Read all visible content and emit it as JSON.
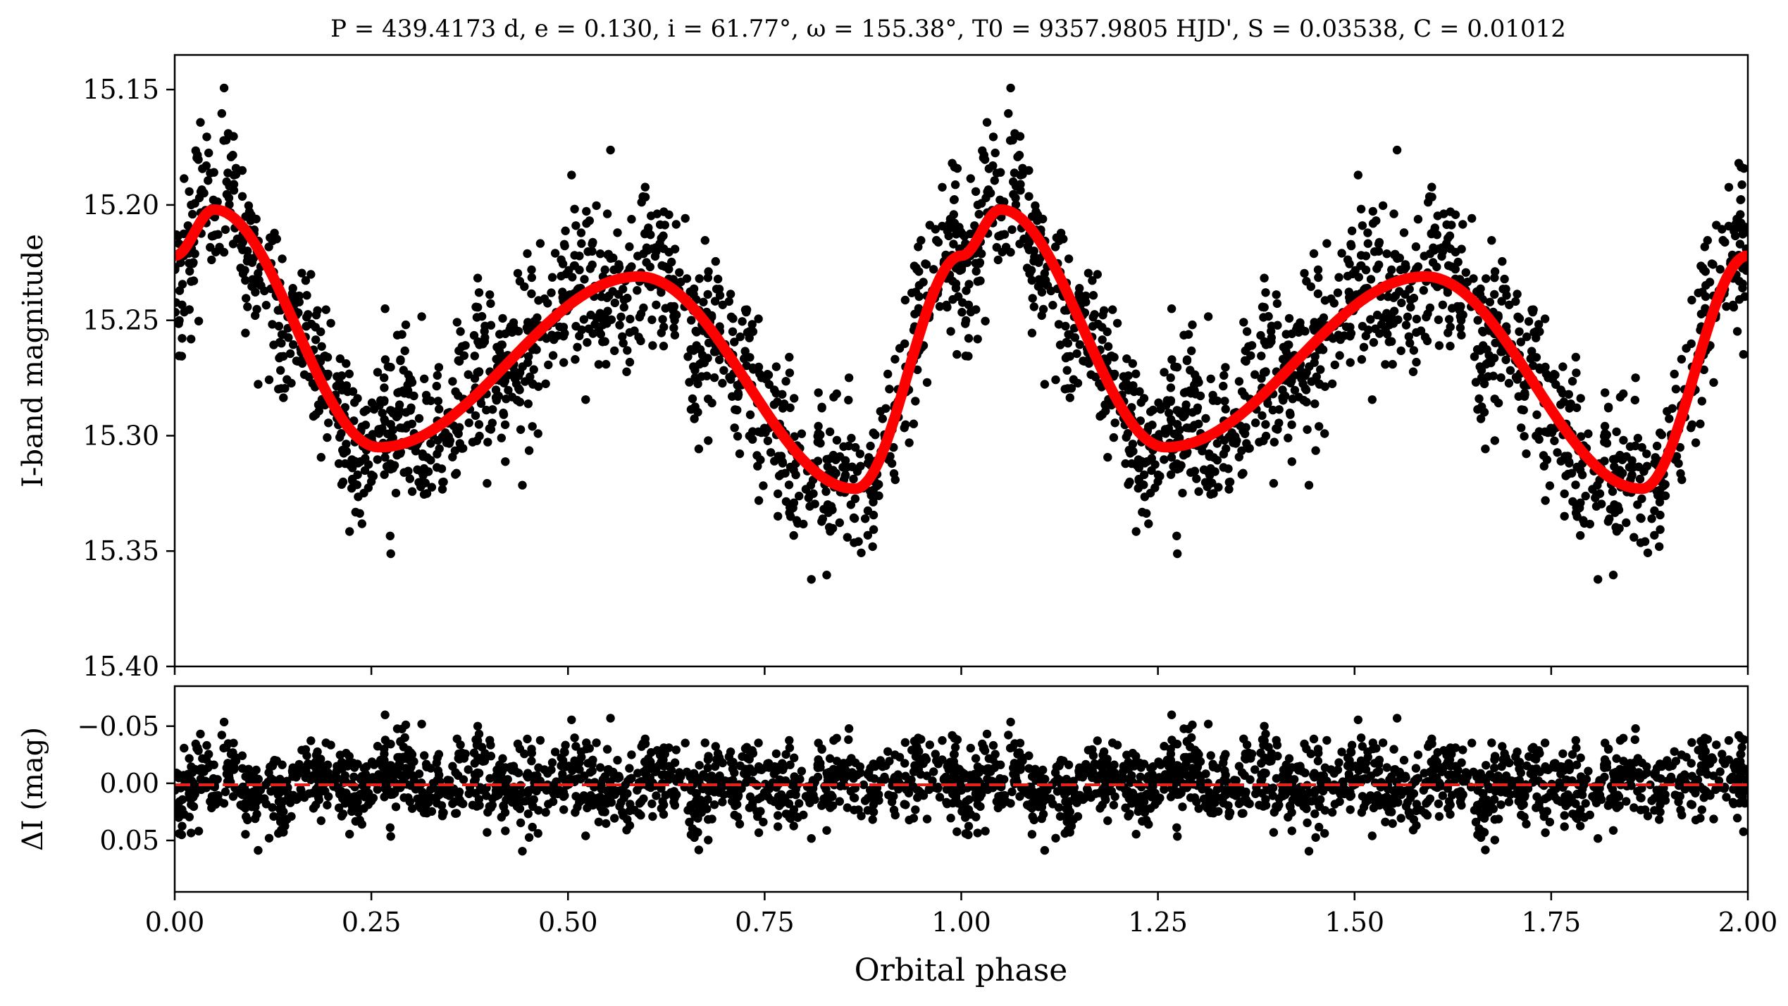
{
  "chart_data": [
    {
      "type": "scatter",
      "panel": "top",
      "title": "P = 439.4173 d, e = 0.130, i = 61.77°, ω = 155.38°, T0 = 9357.9805 HJD', S = 0.03538, C = 0.01012",
      "xlabel": "",
      "ylabel": "I-band magnitude",
      "xlim": [
        0.0,
        2.0
      ],
      "ylim": [
        15.4,
        15.135
      ],
      "y_inverted": true,
      "yticks": [
        15.15,
        15.2,
        15.25,
        15.3,
        15.35,
        15.4
      ],
      "ytick_labels": [
        "15.15",
        "15.20",
        "15.25",
        "15.30",
        "15.35",
        "15.40"
      ],
      "xticks": [
        0.0,
        0.25,
        0.5,
        0.75,
        1.0,
        1.25,
        1.5,
        1.75,
        2.0
      ],
      "xticklabels_shown": false,
      "grid": false,
      "series": [
        {
          "name": "observations",
          "marker": "circle",
          "color": "#000000",
          "description_points": "approx. 1300 phase-folded measurements, repeated over two cycles",
          "n_points_per_cycle": 1300
        },
        {
          "name": "model",
          "style": "line",
          "color": "#ff0000",
          "x": [
            0.0,
            0.05,
            0.26,
            0.59,
            0.865,
            1.0
          ],
          "y": [
            15.222,
            15.202,
            15.305,
            15.231,
            15.323,
            15.222
          ],
          "extrema": {
            "maximum_brightness": {
              "phase": 0.05,
              "mag": 15.202
            },
            "secondary_minimum": {
              "phase": 0.26,
              "mag": 15.305
            },
            "secondary_maximum": {
              "phase": 0.59,
              "mag": 15.231
            },
            "primary_minimum": {
              "phase": 0.865,
              "mag": 15.323
            }
          }
        }
      ]
    },
    {
      "type": "scatter",
      "panel": "bottom",
      "xlabel": "Orbital phase",
      "ylabel": "ΔI (mag)",
      "xlim": [
        0.0,
        2.0
      ],
      "ylim": [
        0.095,
        -0.085
      ],
      "y_inverted": true,
      "yticks": [
        -0.05,
        0.0,
        0.05
      ],
      "ytick_labels": [
        "−0.05",
        "0.00",
        "0.05"
      ],
      "xticks": [
        0.0,
        0.25,
        0.5,
        0.75,
        1.0,
        1.25,
        1.5,
        1.75,
        2.0
      ],
      "xtick_labels": [
        "0.00",
        "0.25",
        "0.50",
        "0.75",
        "1.00",
        "1.25",
        "1.50",
        "1.75",
        "2.00"
      ],
      "grid": false,
      "series": [
        {
          "name": "residuals",
          "marker": "circle",
          "color": "#000000",
          "scatter_rms": 0.025
        },
        {
          "name": "zero line",
          "style": "dashed",
          "color": "#e8201c",
          "y": 0.0
        }
      ]
    }
  ]
}
